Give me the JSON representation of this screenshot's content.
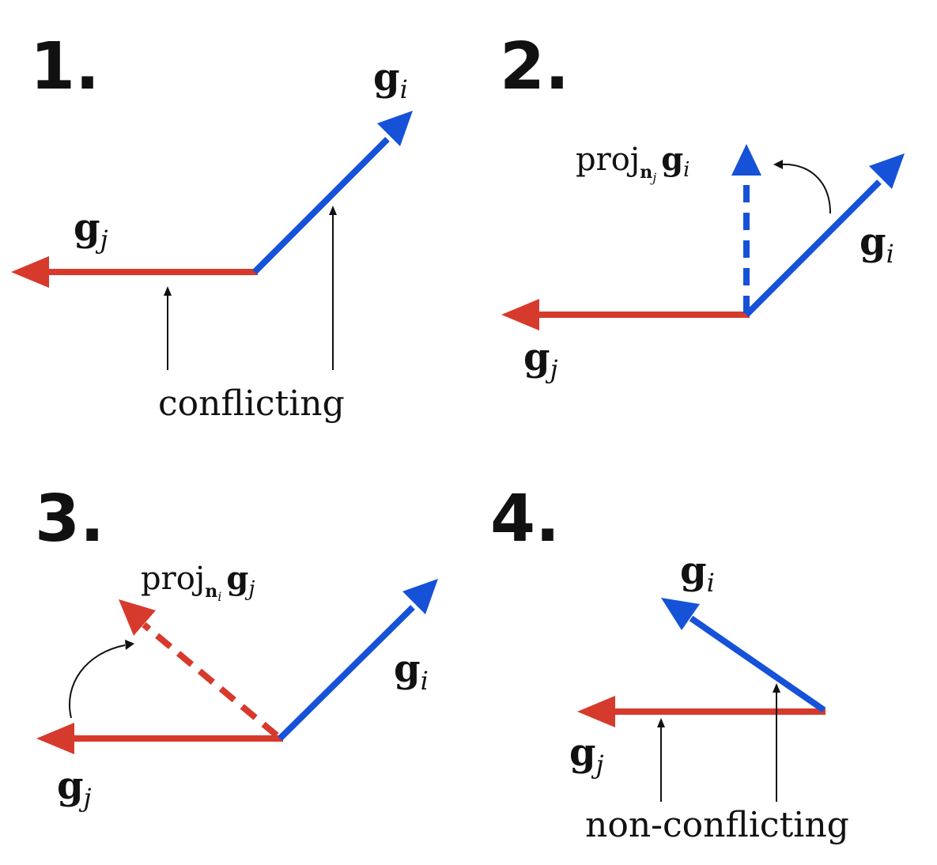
{
  "colors": {
    "gi": "#1652d8",
    "gj": "#d63a2c",
    "ink": "#111111"
  },
  "panels": [
    {
      "number": "1.",
      "gi": {
        "base": "g",
        "sub": "i"
      },
      "gj": {
        "base": "g",
        "sub": "j"
      },
      "annotation": "conflicting"
    },
    {
      "number": "2.",
      "gi": {
        "base": "g",
        "sub": "i"
      },
      "gj": {
        "base": "g",
        "sub": "j"
      },
      "projection": {
        "prefix": "proj",
        "n": "n",
        "n_sub": "j",
        "g": "g",
        "g_sub": "i"
      }
    },
    {
      "number": "3.",
      "gi": {
        "base": "g",
        "sub": "i"
      },
      "gj": {
        "base": "g",
        "sub": "j"
      },
      "projection": {
        "prefix": "proj",
        "n": "n",
        "n_sub": "i",
        "g": "g",
        "g_sub": "j"
      }
    },
    {
      "number": "4.",
      "gi": {
        "base": "g",
        "sub": "i"
      },
      "gj": {
        "base": "g",
        "sub": "j"
      },
      "annotation": "non-conflicting"
    }
  ]
}
